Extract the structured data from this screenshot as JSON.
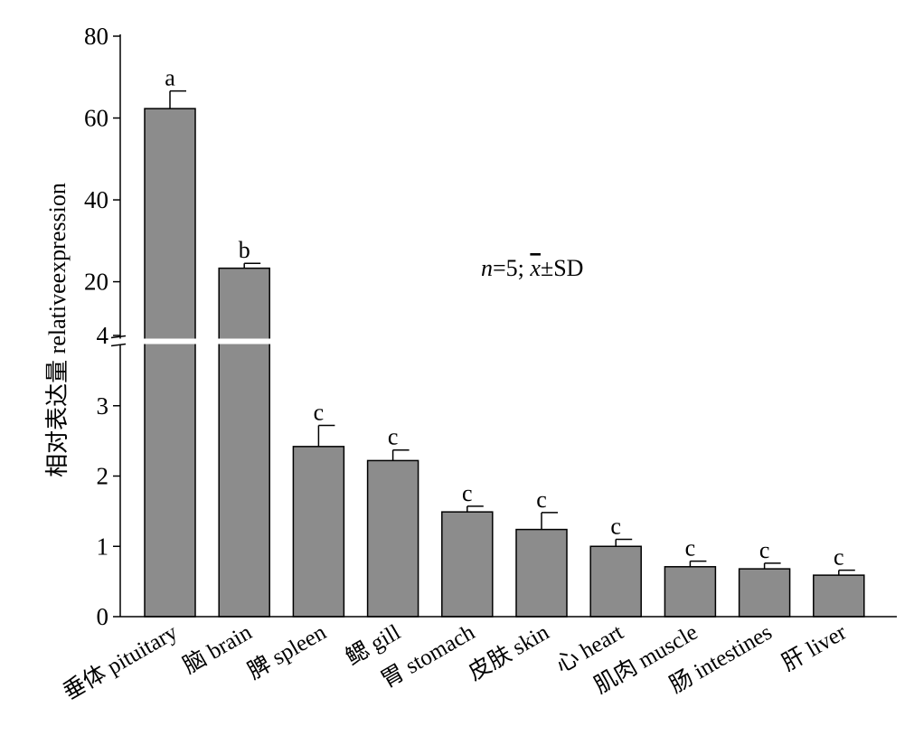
{
  "chart_data": {
    "type": "bar",
    "ylabel": "相对表达量 relativeexpression",
    "annotation": {
      "n_italic": "n",
      "n_rest": "=5; ",
      "xbar": "x",
      "rest": "±SD"
    },
    "axis_break": {
      "lower_range": [
        0,
        4
      ],
      "upper_range": [
        4,
        80
      ],
      "lower_ticks": [
        0,
        1,
        2,
        3,
        4
      ],
      "upper_ticks": [
        20,
        40,
        60,
        80
      ]
    },
    "colors": {
      "bar": "#8c8c8c",
      "axis": "#000000",
      "break": "#ffffff"
    },
    "categories": [
      "垂体 pituitary",
      "脑 brain",
      "脾 spleen",
      "鳃 gill",
      "胃 stomach",
      "皮肤 skin",
      "心 heart",
      "肌肉 muscle",
      "肠 intestines",
      "肝 liver"
    ],
    "values": [
      62.3,
      23.3,
      2.42,
      2.22,
      1.49,
      1.24,
      1.0,
      0.71,
      0.68,
      0.59
    ],
    "errors": [
      4.3,
      1.2,
      0.3,
      0.15,
      0.08,
      0.24,
      0.1,
      0.08,
      0.08,
      0.07
    ],
    "significance": [
      "a",
      "b",
      "c",
      "c",
      "c",
      "c",
      "c",
      "c",
      "c",
      "c"
    ]
  }
}
